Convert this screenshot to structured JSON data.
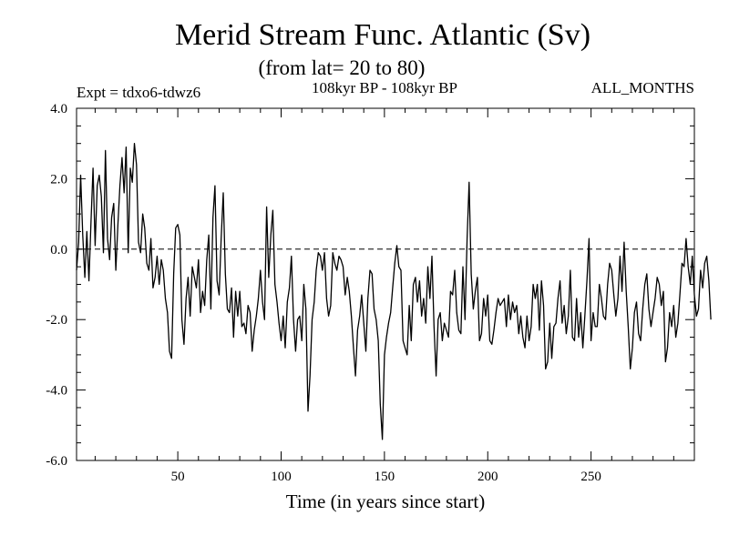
{
  "chart_data": {
    "type": "line",
    "title": "Merid Stream Func. Atlantic (Sv)",
    "subtitle": "(from lat= 20 to 80)",
    "annotation_left": "Expt = tdxo6-tdwz6",
    "annotation_center": "108kyr BP - 108kyr BP",
    "annotation_right": "ALL_MONTHS",
    "xlabel": "Time (in years since start)",
    "ylabel": "",
    "xlim": [
      1,
      300
    ],
    "ylim": [
      -6,
      4
    ],
    "x_ticks": [
      50,
      100,
      150,
      200,
      250
    ],
    "x_tick_labels": [
      "50",
      "100",
      "150",
      "200",
      "250"
    ],
    "y_ticks": [
      4,
      2,
      0,
      -2,
      -4,
      -6
    ],
    "y_tick_labels": [
      "4.0",
      "2.0",
      "0.0",
      "-2.0",
      "-4.0",
      "-6.0"
    ],
    "reference_line": 0,
    "grid": false,
    "series": [
      {
        "x_start": 1,
        "x_step": 1,
        "values": [
          -0.6,
          0.2,
          2.1,
          0.4,
          -0.8,
          0.5,
          -0.9,
          0.8,
          2.3,
          0.1,
          1.8,
          2.1,
          1.5,
          -0.1,
          2.8,
          0.3,
          -0.3,
          0.9,
          1.3,
          -0.6,
          0.7,
          1.8,
          2.6,
          1.6,
          2.9,
          -0.1,
          2.3,
          1.9,
          3.0,
          2.4,
          0.2,
          -0.1,
          1.0,
          0.6,
          -0.4,
          -0.6,
          0.3,
          -1.1,
          -0.8,
          -0.2,
          -1.0,
          -0.3,
          -0.6,
          -1.4,
          -1.8,
          -2.9,
          -3.1,
          -0.7,
          0.6,
          0.7,
          0.4,
          -2.0,
          -2.7,
          -1.4,
          -0.8,
          -1.9,
          -0.5,
          -0.8,
          -1.1,
          -0.3,
          -1.8,
          -1.2,
          -1.6,
          -0.3,
          0.4,
          -1.7,
          0.9,
          1.8,
          -0.9,
          -1.3,
          0.3,
          1.6,
          -0.7,
          -1.7,
          -1.8,
          -1.1,
          -2.5,
          -1.2,
          -1.9,
          -1.2,
          -2.2,
          -2.1,
          -2.4,
          -1.6,
          -1.8,
          -2.9,
          -2.3,
          -1.9,
          -1.4,
          -0.6,
          -1.5,
          -2.0,
          1.2,
          -0.8,
          0.4,
          1.1,
          -1.0,
          -1.5,
          -2.1,
          -2.6,
          -1.9,
          -2.8,
          -1.5,
          -1.1,
          -0.2,
          -2.0,
          -2.9,
          -2.0,
          -1.9,
          -2.6,
          -1.0,
          -1.7,
          -4.6,
          -3.6,
          -2.0,
          -1.5,
          -0.6,
          -0.1,
          -0.2,
          -0.6,
          -0.1,
          -1.4,
          -1.9,
          -1.6,
          -0.1,
          -0.4,
          -0.6,
          -0.2,
          -0.3,
          -0.5,
          -1.3,
          -0.8,
          -1.2,
          -1.9,
          -2.8,
          -3.6,
          -2.3,
          -1.9,
          -1.3,
          -2.1,
          -2.9,
          -1.4,
          -0.6,
          -0.7,
          -1.7,
          -2.0,
          -2.6,
          -4.4,
          -5.4,
          -3.0,
          -2.5,
          -2.1,
          -1.8,
          -1.1,
          -0.4,
          0.1,
          -0.5,
          -0.6,
          -2.6,
          -2.8,
          -3.0,
          -1.6,
          -2.6,
          -1.0,
          -0.8,
          -1.5,
          -0.9,
          -1.9,
          -1.4,
          -2.1,
          -0.5,
          -1.4,
          -0.2,
          -2.2,
          -3.6,
          -2.0,
          -1.8,
          -2.6,
          -2.1,
          -2.3,
          -2.5,
          -1.2,
          -1.3,
          -0.6,
          -1.8,
          -2.3,
          -2.4,
          -0.5,
          -2.0,
          0.3,
          1.9,
          -0.7,
          -1.7,
          -1.2,
          -0.8,
          -2.6,
          -2.4,
          -1.4,
          -1.9,
          -1.3,
          -2.6,
          -2.7,
          -2.3,
          -1.8,
          -1.4,
          -1.6,
          -1.5,
          -1.4,
          -2.2,
          -1.3,
          -2.0,
          -1.5,
          -1.8,
          -1.6,
          -2.4,
          -1.9,
          -2.5,
          -2.8,
          -1.9,
          -2.6,
          -2.2,
          -1.0,
          -1.4,
          -1.0,
          -2.3,
          -0.9,
          -1.6,
          -3.4,
          -3.2,
          -2.1,
          -3.1,
          -2.2,
          -2.1,
          -1.4,
          -0.9,
          -2.1,
          -1.6,
          -2.4,
          -1.9,
          -0.6,
          -2.5,
          -2.6,
          -1.4,
          -2.5,
          -1.8,
          -2.8,
          -1.9,
          -0.9,
          0.3,
          -2.6,
          -1.8,
          -2.2,
          -2.2,
          -1.0,
          -1.4,
          -1.9,
          -2.0,
          -1.0,
          -0.4,
          -0.6,
          -1.3,
          -1.9,
          -1.4,
          -0.2,
          -1.2,
          0.2,
          -1.2,
          -2.2,
          -3.4,
          -2.8,
          -1.8,
          -1.5,
          -2.4,
          -2.6,
          -1.7,
          -1.0,
          -0.7,
          -1.7,
          -2.2,
          -1.8,
          -1.4,
          -0.8,
          -1.0,
          -1.6,
          -1.2,
          -3.2,
          -2.8,
          -1.8,
          -2.2,
          -1.6,
          -2.5,
          -2.1,
          -1.3,
          -0.4,
          -0.5,
          0.3,
          -0.5,
          -1.0,
          -0.2,
          -1.3,
          -1.9,
          -1.7,
          -0.6,
          -1.1,
          -0.4,
          -0.2,
          -0.9,
          -2.0
        ]
      }
    ]
  }
}
